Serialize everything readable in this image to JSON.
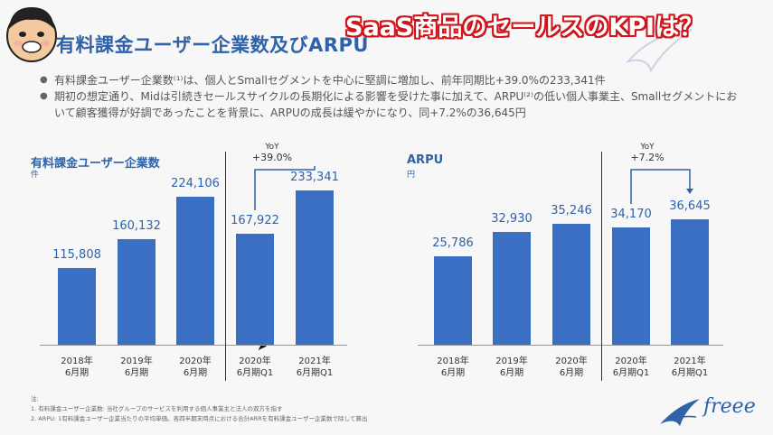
{
  "banner": "SaaS商品のセールスのKPIは？",
  "slide": {
    "title": "有料課金ユーザー企業数及びARPU",
    "bullets": [
      "有料課金ユーザー企業数⁽¹⁾は、個人とSmallセグメントを中心に堅調に増加し、前年同期比+39.0%の233,341件",
      "期初の想定通り、Midは引続きセールスサイクルの長期化による影響を受けた事に加えて、ARPU⁽²⁾の低い個人事業主、Smallセグメントにおいて顧客獲得が好調であったことを背景に、ARPUの成長は緩やかになり、同+7.2%の36,645円"
    ],
    "footnotes": [
      "注:",
      "1. 有料課金ユーザー企業数: 当社グループのサービスを利用する個人事業主と法人の双方を指す",
      "2. ARPU: 1有料課金ユーザー企業当たりの平均単価。各四半期末時点における合計ARRを有料課金ユーザー企業数で除して算出"
    ],
    "logo_text": "freee"
  },
  "chart_data": [
    {
      "type": "bar",
      "title": "有料課金ユーザー企業数",
      "unit": "件",
      "categories": [
        "2018年\n6月期",
        "2019年\n6月期",
        "2020年\n6月期",
        "2020年\n6月期Q1",
        "2021年\n6月期Q1"
      ],
      "values": [
        115808,
        160132,
        224106,
        167922,
        233341
      ],
      "labels": [
        "115,808",
        "160,132",
        "224,106",
        "167,922",
        "233,341"
      ],
      "yoy_label": "YoY",
      "yoy_value": "+39.0%",
      "ylim": [
        0,
        260000
      ]
    },
    {
      "type": "bar",
      "title": "ARPU",
      "unit": "円",
      "categories": [
        "2018年\n6月期",
        "2019年\n6月期",
        "2020年\n6月期",
        "2020年\n6月期Q1",
        "2021年\n6月期Q1"
      ],
      "values": [
        25786,
        32930,
        35246,
        34170,
        36645
      ],
      "labels": [
        "25,786",
        "32,930",
        "35,246",
        "34,170",
        "36,645"
      ],
      "yoy_label": "YoY",
      "yoy_value": "+7.2%",
      "ylim": [
        0,
        50000
      ]
    }
  ],
  "colors": {
    "bar": "#3a6fc4",
    "title": "#2f62a8",
    "banner_stroke": "#d0141b"
  }
}
